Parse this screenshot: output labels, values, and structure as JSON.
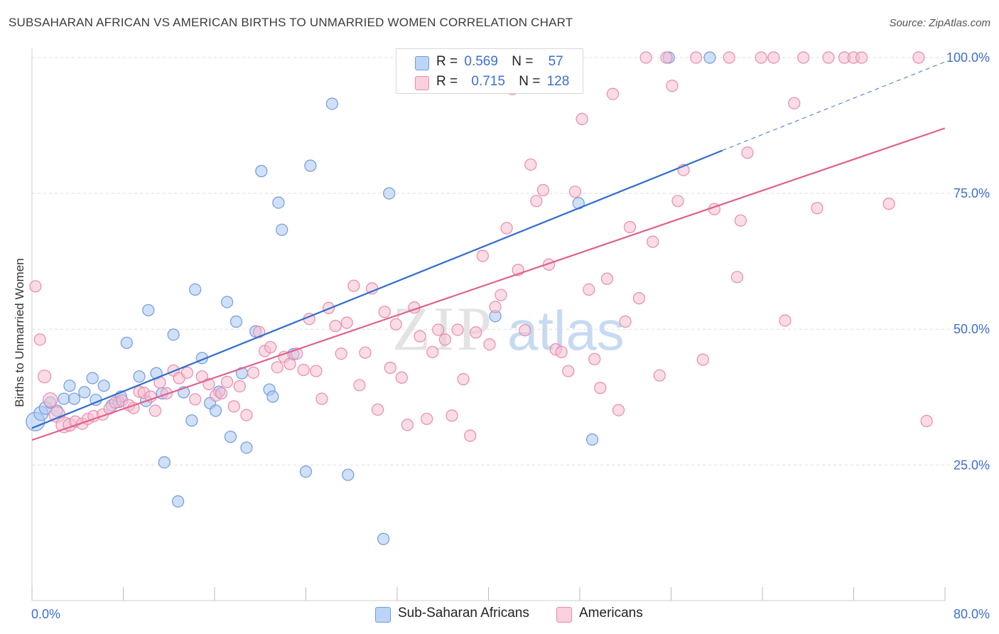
{
  "title": "SUBSAHARAN AFRICAN VS AMERICAN BIRTHS TO UNMARRIED WOMEN CORRELATION CHART",
  "source": "Source: ZipAtlas.com",
  "watermark": {
    "zip": "ZIP",
    "atlas": "atlas"
  },
  "legend": {
    "r_label": "R =",
    "n_label": "N =",
    "series": [
      {
        "r": "0.569",
        "n": "57",
        "color": "#a9c7f2",
        "edge": "#6f9be0"
      },
      {
        "r": "0.715",
        "n": "128",
        "color": "#f6c0d1",
        "edge": "#e98aa9"
      }
    ]
  },
  "bottom_legend": [
    "Sub-Saharan Africans",
    "Americans"
  ],
  "chart_data": {
    "type": "scatter",
    "title": "SUBSAHARAN AFRICAN VS AMERICAN BIRTHS TO UNMARRIED WOMEN CORRELATION CHART",
    "xlabel": "",
    "ylabel": "Births to Unmarried Women",
    "xlim": [
      0,
      80
    ],
    "ylim": [
      0,
      105
    ],
    "x_tick_labels": [
      "0.0%",
      "80.0%"
    ],
    "y_ticks": [
      25,
      50,
      75,
      100
    ],
    "y_tick_labels": [
      "25.0%",
      "50.0%",
      "75.0%",
      "100.0%"
    ],
    "grid": true,
    "legend_position": "top-center",
    "series": [
      {
        "name": "Sub-Saharan Africans",
        "color": "#6f9be0",
        "fill": "#a9c7f2",
        "trend": {
          "x0": 0,
          "y0": 31.8,
          "x1": 60.5,
          "y1": 82.9,
          "dash_to_x": 80,
          "dash_to_y": 99.2,
          "color": "#2f6ccf"
        },
        "points": [
          [
            0.3,
            33.0,
            13
          ],
          [
            0.8,
            34.5,
            10
          ],
          [
            1.2,
            35.5,
            9
          ],
          [
            1.6,
            36.5,
            8
          ],
          [
            2.2,
            35.0,
            8
          ],
          [
            2.8,
            37.2,
            8
          ],
          [
            3.3,
            39.6,
            8
          ],
          [
            3.7,
            37.2,
            8
          ],
          [
            4.6,
            38.4,
            8
          ],
          [
            5.3,
            41.0,
            8
          ],
          [
            5.6,
            37.0,
            8
          ],
          [
            6.3,
            39.6,
            8
          ],
          [
            7.0,
            36.0,
            8
          ],
          [
            7.6,
            36.6,
            8
          ],
          [
            7.8,
            37.6,
            8
          ],
          [
            8.3,
            47.5,
            8
          ],
          [
            9.4,
            41.3,
            8
          ],
          [
            10.0,
            36.8,
            8
          ],
          [
            10.2,
            53.5,
            8
          ],
          [
            10.9,
            41.9,
            8
          ],
          [
            11.4,
            38.2,
            8
          ],
          [
            11.6,
            25.5,
            8
          ],
          [
            12.4,
            49.0,
            8
          ],
          [
            12.8,
            18.3,
            8
          ],
          [
            13.3,
            38.4,
            8
          ],
          [
            14.0,
            33.2,
            8
          ],
          [
            14.3,
            57.3,
            8
          ],
          [
            14.9,
            44.7,
            8
          ],
          [
            15.6,
            36.4,
            8
          ],
          [
            16.1,
            35.0,
            8
          ],
          [
            16.4,
            38.5,
            8
          ],
          [
            17.1,
            55.0,
            8
          ],
          [
            17.4,
            30.2,
            8
          ],
          [
            17.9,
            51.4,
            8
          ],
          [
            18.4,
            41.9,
            8
          ],
          [
            18.8,
            28.2,
            8
          ],
          [
            19.6,
            49.6,
            8
          ],
          [
            20.1,
            79.1,
            8
          ],
          [
            20.8,
            38.9,
            8
          ],
          [
            21.1,
            37.6,
            8
          ],
          [
            21.6,
            73.3,
            8
          ],
          [
            21.9,
            68.3,
            8
          ],
          [
            22.9,
            45.4,
            8
          ],
          [
            24.0,
            23.8,
            8
          ],
          [
            24.4,
            80.1,
            8
          ],
          [
            26.3,
            91.5,
            8
          ],
          [
            27.7,
            23.2,
            8
          ],
          [
            30.8,
            11.4,
            8
          ],
          [
            31.3,
            75.0,
            8
          ],
          [
            40.6,
            52.4,
            8
          ],
          [
            47.9,
            73.2,
            8
          ],
          [
            49.1,
            29.7,
            8
          ],
          [
            55.8,
            100.0,
            8
          ],
          [
            59.4,
            100.0,
            8
          ]
        ]
      },
      {
        "name": "Americans",
        "color": "#e98aa9",
        "fill": "#f6c0d1",
        "trend": {
          "x0": 0,
          "y0": 29.6,
          "x1": 80,
          "y1": 87.0,
          "color": "#e0618d"
        },
        "points": [
          [
            0.3,
            57.9,
            8
          ],
          [
            0.7,
            48.1,
            8
          ],
          [
            1.1,
            41.3,
            9
          ],
          [
            1.6,
            37.0,
            10
          ],
          [
            2.2,
            34.3,
            11
          ],
          [
            2.8,
            32.4,
            11
          ],
          [
            3.3,
            32.4,
            9
          ],
          [
            3.8,
            33.0,
            8
          ],
          [
            4.4,
            32.6,
            8
          ],
          [
            4.9,
            33.5,
            8
          ],
          [
            5.4,
            34.0,
            8
          ],
          [
            6.2,
            34.3,
            8
          ],
          [
            6.8,
            35.4,
            8
          ],
          [
            7.3,
            36.5,
            8
          ],
          [
            7.9,
            36.9,
            8
          ],
          [
            8.5,
            36.0,
            8
          ],
          [
            8.9,
            35.5,
            8
          ],
          [
            9.4,
            38.5,
            8
          ],
          [
            9.8,
            38.3,
            8
          ],
          [
            10.4,
            37.6,
            8
          ],
          [
            10.8,
            35.0,
            8
          ],
          [
            11.2,
            40.2,
            8
          ],
          [
            11.8,
            38.2,
            8
          ],
          [
            12.4,
            42.4,
            8
          ],
          [
            12.9,
            41.0,
            8
          ],
          [
            13.6,
            42.0,
            8
          ],
          [
            14.3,
            37.1,
            8
          ],
          [
            14.9,
            41.3,
            8
          ],
          [
            15.5,
            39.9,
            8
          ],
          [
            16.1,
            37.8,
            8
          ],
          [
            16.6,
            38.2,
            8
          ],
          [
            17.1,
            40.3,
            8
          ],
          [
            17.7,
            35.8,
            8
          ],
          [
            18.2,
            39.5,
            8
          ],
          [
            18.8,
            34.2,
            8
          ],
          [
            19.4,
            42.0,
            8
          ],
          [
            19.9,
            49.5,
            8
          ],
          [
            20.4,
            46.0,
            8
          ],
          [
            20.9,
            46.7,
            8
          ],
          [
            21.5,
            43.0,
            8
          ],
          [
            22.1,
            44.9,
            8
          ],
          [
            22.6,
            43.6,
            8
          ],
          [
            23.2,
            45.5,
            8
          ],
          [
            23.8,
            42.5,
            8
          ],
          [
            24.3,
            51.9,
            8
          ],
          [
            24.9,
            42.3,
            8
          ],
          [
            25.4,
            37.2,
            8
          ],
          [
            26.0,
            53.9,
            8
          ],
          [
            26.6,
            50.6,
            8
          ],
          [
            27.1,
            45.5,
            8
          ],
          [
            27.6,
            51.2,
            8
          ],
          [
            28.2,
            58.0,
            8
          ],
          [
            28.7,
            39.7,
            8
          ],
          [
            29.2,
            45.7,
            8
          ],
          [
            29.8,
            57.5,
            8
          ],
          [
            30.3,
            35.2,
            8
          ],
          [
            30.9,
            53.2,
            8
          ],
          [
            31.4,
            42.9,
            8
          ],
          [
            31.9,
            50.9,
            8
          ],
          [
            32.4,
            41.1,
            8
          ],
          [
            32.9,
            32.4,
            8
          ],
          [
            33.5,
            54.0,
            8
          ],
          [
            34.0,
            48.7,
            8
          ],
          [
            34.6,
            33.5,
            8
          ],
          [
            35.1,
            45.8,
            8
          ],
          [
            35.6,
            49.9,
            8
          ],
          [
            36.2,
            48.1,
            8
          ],
          [
            36.8,
            34.1,
            8
          ],
          [
            37.3,
            49.9,
            8
          ],
          [
            37.8,
            40.8,
            8
          ],
          [
            38.4,
            30.4,
            8
          ],
          [
            38.9,
            49.4,
            8
          ],
          [
            39.5,
            63.5,
            8
          ],
          [
            40.1,
            47.2,
            8
          ],
          [
            40.6,
            54.1,
            8
          ],
          [
            41.1,
            56.3,
            8
          ],
          [
            41.6,
            68.6,
            8
          ],
          [
            42.1,
            94.2,
            8
          ],
          [
            42.6,
            60.9,
            8
          ],
          [
            43.2,
            49.8,
            8
          ],
          [
            43.7,
            80.3,
            8
          ],
          [
            44.2,
            73.6,
            8
          ],
          [
            44.8,
            75.6,
            8
          ],
          [
            45.3,
            61.9,
            8
          ],
          [
            45.9,
            46.3,
            8
          ],
          [
            46.4,
            45.8,
            8
          ],
          [
            47.0,
            42.3,
            8
          ],
          [
            47.6,
            75.3,
            8
          ],
          [
            48.2,
            88.7,
            8
          ],
          [
            48.8,
            57.3,
            8
          ],
          [
            49.3,
            44.5,
            8
          ],
          [
            49.8,
            39.2,
            8
          ],
          [
            50.4,
            59.3,
            8
          ],
          [
            50.9,
            93.3,
            8
          ],
          [
            51.4,
            35.1,
            8
          ],
          [
            52.0,
            51.4,
            8
          ],
          [
            52.4,
            68.8,
            8
          ],
          [
            53.2,
            55.7,
            8
          ],
          [
            53.8,
            100.0,
            8
          ],
          [
            54.4,
            66.1,
            8
          ],
          [
            55.0,
            41.5,
            8
          ],
          [
            55.6,
            100.0,
            8
          ],
          [
            56.1,
            94.8,
            8
          ],
          [
            56.6,
            73.6,
            8
          ],
          [
            57.1,
            79.3,
            8
          ],
          [
            58.2,
            100.0,
            8
          ],
          [
            58.8,
            44.4,
            8
          ],
          [
            59.8,
            72.1,
            8
          ],
          [
            61.1,
            100.0,
            8
          ],
          [
            61.8,
            59.6,
            8
          ],
          [
            62.1,
            70.0,
            8
          ],
          [
            62.7,
            82.5,
            8
          ],
          [
            63.9,
            100.0,
            8
          ],
          [
            65.0,
            100.0,
            8
          ],
          [
            66.0,
            51.6,
            8
          ],
          [
            66.8,
            91.6,
            8
          ],
          [
            67.6,
            100.0,
            8
          ],
          [
            68.8,
            72.3,
            8
          ],
          [
            69.8,
            100.0,
            8
          ],
          [
            71.2,
            100.0,
            8
          ],
          [
            72.0,
            100.0,
            8
          ],
          [
            72.7,
            100.0,
            8
          ],
          [
            75.1,
            73.1,
            8
          ],
          [
            77.7,
            100.0,
            8
          ],
          [
            78.4,
            33.1,
            8
          ]
        ]
      }
    ]
  }
}
